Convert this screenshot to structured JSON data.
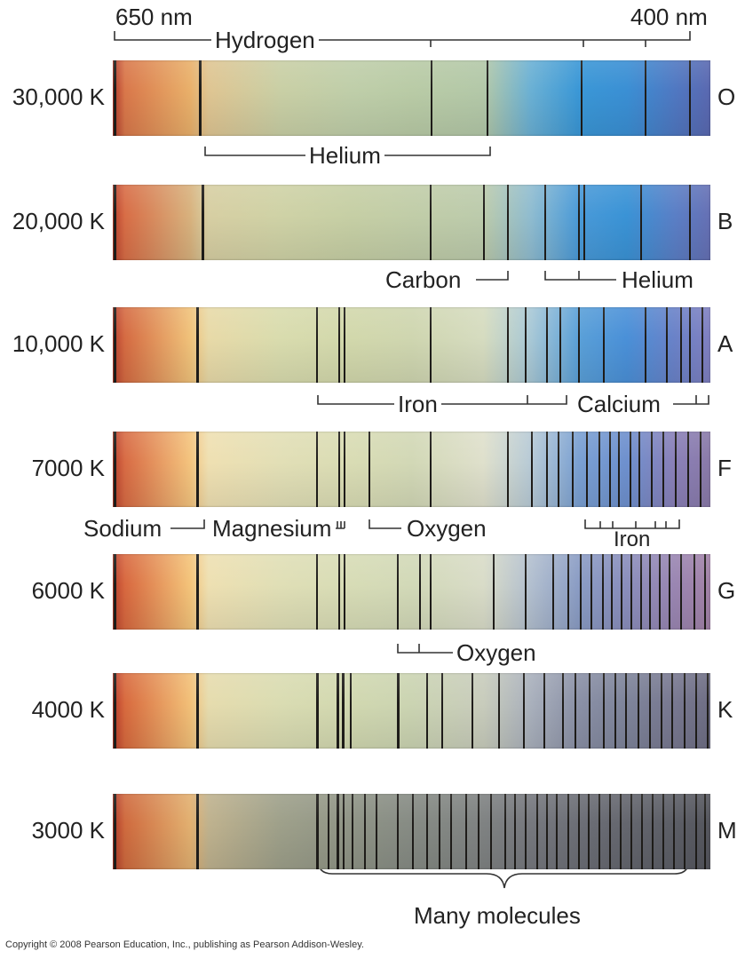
{
  "header": {
    "left_wavelength": "650 nm",
    "right_wavelength": "400 nm",
    "hydrogen_label": "Hydrogen"
  },
  "rows": [
    {
      "temp": "30,000 K",
      "class": "O",
      "colors": [
        "#b0382c",
        "#d9774a",
        "#e9b06a",
        "#dfc592",
        "#c9cfa5",
        "#bfcea9",
        "#b9cba6",
        "#b3c8a8",
        "#6ab0d4",
        "#3a97d6",
        "#3a8fd4",
        "#4f78c2",
        "#5a68b0"
      ],
      "lines": [
        {
          "p": 0.002,
          "w": 3
        },
        {
          "p": 0.144,
          "w": 3
        },
        {
          "p": 0.532,
          "w": 2
        },
        {
          "p": 0.625,
          "w": 2
        },
        {
          "p": 0.783,
          "w": 2
        },
        {
          "p": 0.89,
          "w": 2
        },
        {
          "p": 0.965,
          "w": 2
        }
      ]
    },
    {
      "temp": "20,000 K",
      "class": "B",
      "colors": [
        "#b8402e",
        "#d86d46",
        "#d8b27e",
        "#d7cfa3",
        "#cfd2a6",
        "#c6cfa5",
        "#c1cda8",
        "#bccbac",
        "#8fbcd0",
        "#4a9ad8",
        "#3a93d6",
        "#5a7fc6",
        "#6670b4"
      ],
      "lines": [
        {
          "p": 0.002,
          "w": 3
        },
        {
          "p": 0.148,
          "w": 3
        },
        {
          "p": 0.53,
          "w": 2
        },
        {
          "p": 0.62,
          "w": 2
        },
        {
          "p": 0.66,
          "w": 2
        },
        {
          "p": 0.722,
          "w": 2
        },
        {
          "p": 0.778,
          "w": 2
        },
        {
          "p": 0.787,
          "w": 2
        },
        {
          "p": 0.882,
          "w": 2
        },
        {
          "p": 0.965,
          "w": 2
        }
      ]
    },
    {
      "temp": "10,000 K",
      "class": "A",
      "colors": [
        "#b84030",
        "#d56b42",
        "#f0c27a",
        "#e8daa8",
        "#d9dcae",
        "#d2d8ac",
        "#cfd6b0",
        "#d6dcc0",
        "#a8c8d6",
        "#5aa0d8",
        "#4a90d8",
        "#6a82c8",
        "#8080c0"
      ],
      "lines": [
        {
          "p": 0.002,
          "w": 3
        },
        {
          "p": 0.14,
          "w": 3
        },
        {
          "p": 0.34,
          "w": 2
        },
        {
          "p": 0.378,
          "w": 2
        },
        {
          "p": 0.386,
          "w": 2
        },
        {
          "p": 0.53,
          "w": 2
        },
        {
          "p": 0.66,
          "w": 2
        },
        {
          "p": 0.69,
          "w": 2
        },
        {
          "p": 0.725,
          "w": 2
        },
        {
          "p": 0.748,
          "w": 2
        },
        {
          "p": 0.778,
          "w": 2
        },
        {
          "p": 0.82,
          "w": 2
        },
        {
          "p": 0.89,
          "w": 2
        },
        {
          "p": 0.925,
          "w": 2
        },
        {
          "p": 0.95,
          "w": 2
        },
        {
          "p": 0.965,
          "w": 2
        },
        {
          "p": 0.985,
          "w": 2
        }
      ]
    },
    {
      "temp": "7000 K",
      "class": "F",
      "colors": [
        "#b8402e",
        "#d86b44",
        "#f4c47e",
        "#efe0b2",
        "#e2dfb6",
        "#d9dcb4",
        "#d2d8b6",
        "#dfe0cc",
        "#b7cad6",
        "#7aa0d2",
        "#6e90ce",
        "#8a80b8",
        "#8a7aa8"
      ],
      "lines": [
        {
          "p": 0.002,
          "w": 3
        },
        {
          "p": 0.14,
          "w": 3
        },
        {
          "p": 0.34,
          "w": 2
        },
        {
          "p": 0.378,
          "w": 2
        },
        {
          "p": 0.386,
          "w": 2
        },
        {
          "p": 0.428,
          "w": 2
        },
        {
          "p": 0.53,
          "w": 2
        },
        {
          "p": 0.66,
          "w": 2
        },
        {
          "p": 0.7,
          "w": 2
        },
        {
          "p": 0.725,
          "w": 2
        },
        {
          "p": 0.745,
          "w": 2
        },
        {
          "p": 0.768,
          "w": 2
        },
        {
          "p": 0.792,
          "w": 2
        },
        {
          "p": 0.812,
          "w": 2
        },
        {
          "p": 0.83,
          "w": 2
        },
        {
          "p": 0.846,
          "w": 2
        },
        {
          "p": 0.864,
          "w": 2
        },
        {
          "p": 0.88,
          "w": 2
        },
        {
          "p": 0.9,
          "w": 2
        },
        {
          "p": 0.92,
          "w": 2
        },
        {
          "p": 0.94,
          "w": 2
        },
        {
          "p": 0.962,
          "w": 2
        },
        {
          "p": 0.982,
          "w": 2
        }
      ]
    },
    {
      "temp": "6000 K",
      "class": "G",
      "colors": [
        "#b8402e",
        "#d8683f",
        "#f4c47a",
        "#eee0b2",
        "#e0dfb6",
        "#d7dcb6",
        "#d2d9b8",
        "#d9dcc8",
        "#b2bfcf",
        "#8a9cc4",
        "#8a8ebc",
        "#9a86b2",
        "#a382a8"
      ],
      "lines": [
        {
          "p": 0.002,
          "w": 3
        },
        {
          "p": 0.14,
          "w": 3
        },
        {
          "p": 0.34,
          "w": 2
        },
        {
          "p": 0.378,
          "w": 2
        },
        {
          "p": 0.386,
          "w": 2
        },
        {
          "p": 0.476,
          "w": 2
        },
        {
          "p": 0.512,
          "w": 2
        },
        {
          "p": 0.53,
          "w": 2
        },
        {
          "p": 0.636,
          "w": 2
        },
        {
          "p": 0.69,
          "w": 2
        },
        {
          "p": 0.735,
          "w": 2
        },
        {
          "p": 0.76,
          "w": 2
        },
        {
          "p": 0.782,
          "w": 2
        },
        {
          "p": 0.8,
          "w": 2
        },
        {
          "p": 0.818,
          "w": 2
        },
        {
          "p": 0.834,
          "w": 2
        },
        {
          "p": 0.85,
          "w": 2
        },
        {
          "p": 0.866,
          "w": 2
        },
        {
          "p": 0.882,
          "w": 2
        },
        {
          "p": 0.898,
          "w": 2
        },
        {
          "p": 0.914,
          "w": 2
        },
        {
          "p": 0.93,
          "w": 2
        },
        {
          "p": 0.95,
          "w": 2
        },
        {
          "p": 0.972,
          "w": 2
        },
        {
          "p": 0.99,
          "w": 2
        }
      ]
    },
    {
      "temp": "4000 K",
      "class": "K",
      "colors": [
        "#b83a2c",
        "#d86a3e",
        "#f2c078",
        "#e6dcae",
        "#dadcb2",
        "#d1d8b0",
        "#cbd4b2",
        "#c8ccbc",
        "#a9b0bc",
        "#8a90a6",
        "#7e849a",
        "#787890",
        "#6e6e84"
      ],
      "lines": [
        {
          "p": 0.002,
          "w": 3
        },
        {
          "p": 0.14,
          "w": 3
        },
        {
          "p": 0.34,
          "w": 3
        },
        {
          "p": 0.375,
          "w": 3
        },
        {
          "p": 0.383,
          "w": 3
        },
        {
          "p": 0.396,
          "w": 2
        },
        {
          "p": 0.476,
          "w": 3
        },
        {
          "p": 0.525,
          "w": 2
        },
        {
          "p": 0.55,
          "w": 2
        },
        {
          "p": 0.6,
          "w": 2
        },
        {
          "p": 0.645,
          "w": 2
        },
        {
          "p": 0.686,
          "w": 2
        },
        {
          "p": 0.72,
          "w": 2
        },
        {
          "p": 0.752,
          "w": 2
        },
        {
          "p": 0.772,
          "w": 2
        },
        {
          "p": 0.796,
          "w": 2
        },
        {
          "p": 0.82,
          "w": 2
        },
        {
          "p": 0.84,
          "w": 2
        },
        {
          "p": 0.858,
          "w": 2
        },
        {
          "p": 0.878,
          "w": 2
        },
        {
          "p": 0.898,
          "w": 2
        },
        {
          "p": 0.916,
          "w": 2
        },
        {
          "p": 0.934,
          "w": 2
        },
        {
          "p": 0.955,
          "w": 2
        },
        {
          "p": 0.975,
          "w": 2
        },
        {
          "p": 0.994,
          "w": 2
        }
      ]
    },
    {
      "temp": "3000 K",
      "class": "M",
      "colors": [
        "#b0382a",
        "#cf6a3e",
        "#e2b070",
        "#bfb28e",
        "#9ea08a",
        "#8f9486",
        "#868b84",
        "#7f8282",
        "#76787e",
        "#6c6e76",
        "#64666e",
        "#5c5e66",
        "#55565e"
      ],
      "lines": [
        {
          "p": 0.002,
          "w": 3
        },
        {
          "p": 0.14,
          "w": 3
        },
        {
          "p": 0.34,
          "w": 3
        },
        {
          "p": 0.36,
          "w": 2
        },
        {
          "p": 0.375,
          "w": 3
        },
        {
          "p": 0.385,
          "w": 2
        },
        {
          "p": 0.4,
          "w": 2
        },
        {
          "p": 0.42,
          "w": 2
        },
        {
          "p": 0.44,
          "w": 2
        },
        {
          "p": 0.476,
          "w": 2
        },
        {
          "p": 0.5,
          "w": 2
        },
        {
          "p": 0.525,
          "w": 2
        },
        {
          "p": 0.545,
          "w": 2
        },
        {
          "p": 0.565,
          "w": 2
        },
        {
          "p": 0.59,
          "w": 2
        },
        {
          "p": 0.61,
          "w": 2
        },
        {
          "p": 0.632,
          "w": 2
        },
        {
          "p": 0.655,
          "w": 2
        },
        {
          "p": 0.672,
          "w": 2
        },
        {
          "p": 0.69,
          "w": 2
        },
        {
          "p": 0.708,
          "w": 2
        },
        {
          "p": 0.725,
          "w": 2
        },
        {
          "p": 0.742,
          "w": 2
        },
        {
          "p": 0.76,
          "w": 2
        },
        {
          "p": 0.778,
          "w": 2
        },
        {
          "p": 0.795,
          "w": 2
        },
        {
          "p": 0.812,
          "w": 2
        },
        {
          "p": 0.83,
          "w": 2
        },
        {
          "p": 0.848,
          "w": 2
        },
        {
          "p": 0.866,
          "w": 2
        },
        {
          "p": 0.884,
          "w": 2
        },
        {
          "p": 0.902,
          "w": 2
        },
        {
          "p": 0.92,
          "w": 2
        },
        {
          "p": 0.938,
          "w": 2
        },
        {
          "p": 0.956,
          "w": 2
        },
        {
          "p": 0.974,
          "w": 2
        },
        {
          "p": 0.99,
          "w": 2
        }
      ]
    }
  ],
  "labels": {
    "o_helium": "Helium",
    "b_carbon": "Carbon",
    "b_helium": "Helium",
    "a_iron": "Iron",
    "a_calcium": "Calcium",
    "f_sodium": "Sodium",
    "f_magnesium": "Magnesium",
    "f_oxygen": "Oxygen",
    "f_iron": "Iron",
    "g_oxygen": "Oxygen",
    "m_molecules": "Many molecules"
  },
  "copyright": "Copyright © 2008 Pearson Education, Inc., publishing as Pearson Addison-Wesley."
}
